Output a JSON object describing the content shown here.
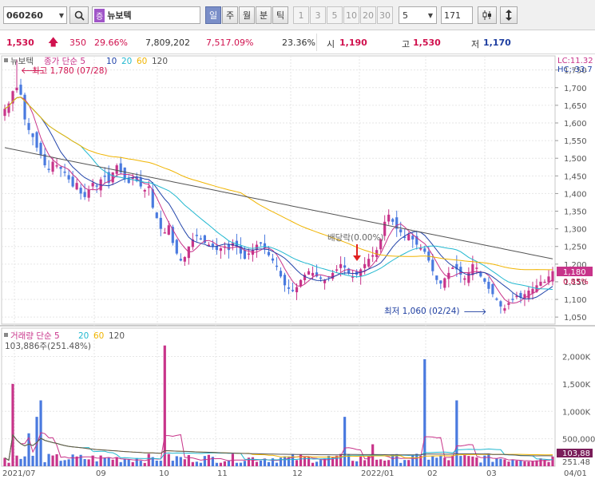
{
  "toolbar": {
    "code": "060260",
    "market_badge": "증",
    "name": "뉴보텍",
    "period_tabs": [
      "일",
      "주",
      "월",
      "분",
      "틱"
    ],
    "interval_btns": [
      "1",
      "3",
      "5",
      "10",
      "20",
      "30"
    ],
    "ma_select": "5",
    "count_input": "171"
  },
  "info": {
    "price": "1,530",
    "change": "350",
    "change_pct": "29.66%",
    "volume": "7,809,202",
    "vol_ratio": "7,517.09%",
    "turnover": "23.36%",
    "open_label": "시",
    "open": "1,190",
    "high_label": "고",
    "high": "1,530",
    "low_label": "저",
    "low": "1,170"
  },
  "price_chart": {
    "legend_name": "뉴보텍",
    "legend_ma": "종가 단순",
    "ma_periods": [
      "5",
      "10",
      "20",
      "60",
      "120"
    ],
    "ma_colors": [
      "#c8348a",
      "#2244aa",
      "#22b8d0",
      "#f0b400",
      "#555555"
    ],
    "high_annotation": "최고 1,780 (07/28)",
    "low_annotation": "최저 1,060 (02/24)",
    "dividend_label": "배당락(0.00%)",
    "lc_label": "LC:11.32",
    "hc_label": "HC:-33.7",
    "last_price_tag": "1,180",
    "last_pct_tag": "0.85%",
    "y_ticks": [
      "1,750",
      "1,700",
      "1,650",
      "1,600",
      "1,550",
      "1,500",
      "1,450",
      "1,400",
      "1,350",
      "1,300",
      "1,250",
      "1,200",
      "1,150",
      "1,100",
      "1,050"
    ]
  },
  "volume_chart": {
    "legend_name": "거래량",
    "legend_ma": "단순",
    "ma_periods": [
      "5",
      "20",
      "60",
      "120"
    ],
    "ma_colors": [
      "#c8348a",
      "#22b8d0",
      "#f0b400",
      "#555555"
    ],
    "value_label": "103,886주(251.48%)",
    "y_ticks": [
      "2,000K",
      "1,500K",
      "1,000K",
      "500,000"
    ],
    "tag_volume": "103,88",
    "tag_pct": "251.48"
  },
  "x_axis": [
    "2021/07",
    "09",
    "10",
    "11",
    "12",
    "2022/01",
    "02",
    "03",
    "04/01"
  ],
  "chart_data": {
    "type": "candlestick",
    "y_range": [
      1030,
      1790
    ],
    "volume_range_k": [
      0,
      2400
    ],
    "closes": [
      1640,
      1655,
      1690,
      1700,
      1680,
      1610,
      1580,
      1560,
      1530,
      1510,
      1480,
      1470,
      1490,
      1480,
      1470,
      1460,
      1440,
      1420,
      1430,
      1400,
      1390,
      1410,
      1430,
      1420,
      1440,
      1450,
      1430,
      1460,
      1480,
      1460,
      1440,
      1430,
      1445,
      1435,
      1420,
      1410,
      1420,
      1360,
      1330,
      1300,
      1290,
      1310,
      1260,
      1230,
      1210,
      1220,
      1250,
      1270,
      1280,
      1270,
      1260,
      1255,
      1250,
      1240,
      1245,
      1250,
      1240,
      1260,
      1250,
      1230,
      1215,
      1230,
      1240,
      1255,
      1260,
      1245,
      1225,
      1210,
      1195,
      1165,
      1140,
      1130,
      1125,
      1135,
      1155,
      1170,
      1180,
      1175,
      1165,
      1160,
      1155,
      1165,
      1175,
      1185,
      1200,
      1190,
      1175,
      1165,
      1170,
      1185,
      1200,
      1215,
      1225,
      1240,
      1270,
      1320,
      1340,
      1320,
      1300,
      1290,
      1275,
      1285,
      1270,
      1255,
      1245,
      1235,
      1210,
      1180,
      1155,
      1145,
      1160,
      1175,
      1190,
      1185,
      1170,
      1160,
      1175,
      1200,
      1190,
      1165,
      1150,
      1130,
      1115,
      1100,
      1080,
      1075,
      1090,
      1100,
      1110,
      1105,
      1115,
      1125,
      1130,
      1140,
      1150,
      1150,
      1165,
      1180
    ],
    "annotations": {
      "high": 1780,
      "low": 1060,
      "last": 1180
    }
  }
}
